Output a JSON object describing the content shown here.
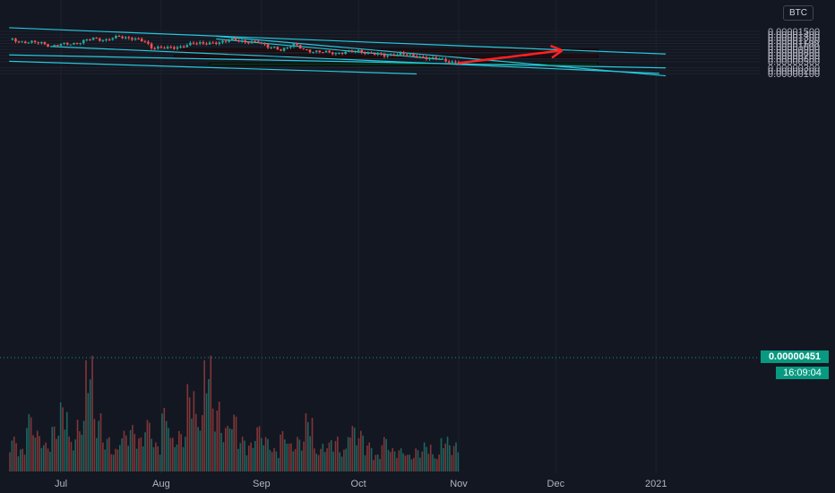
{
  "currency": "BTC",
  "last_price": "0.00000451",
  "countdown": "16:09:04",
  "colors": {
    "background": "#131722",
    "up_candle": "#26a69a",
    "down_candle": "#ef5350",
    "trendline": "#26c6da",
    "resistance_zone": "#b71c1c",
    "support_zone": "#1b8a1b",
    "arrow": "#ff2222"
  },
  "chart_data": {
    "type": "candlestick",
    "y_axis": {
      "scale": "linear",
      "range": [
        9e-07,
        1.56e-05
      ],
      "tick_labels": [
        "0.00001500",
        "0.00001400",
        "0.00001300",
        "0.00001200",
        "0.00001100",
        "0.00001000",
        "0.00000900",
        "0.00000800",
        "0.00000700",
        "0.00000600",
        "0.00000500",
        "0.00000300",
        "0.00000200",
        "0.00000100"
      ],
      "tick_values": [
        1.5e-05,
        1.4e-05,
        1.3e-05,
        1.2e-05,
        1.1e-05,
        1e-05,
        9e-06,
        8e-06,
        7e-06,
        6e-06,
        5e-06,
        3e-06,
        2e-06,
        1e-06
      ]
    },
    "x_axis": {
      "tick_labels": [
        "Jul",
        "Aug",
        "Sep",
        "Oct",
        "Nov",
        "Dec",
        "2021"
      ],
      "tick_days": [
        0,
        31,
        62,
        92,
        123,
        153,
        184
      ]
    },
    "price_path": [
      {
        "day": -16,
        "price": 1.25e-05
      },
      {
        "day": -12,
        "price": 1.15e-05
      },
      {
        "day": -6,
        "price": 1.12e-05
      },
      {
        "day": -3,
        "price": 1.01e-05
      },
      {
        "day": 0,
        "price": 1.07e-05
      },
      {
        "day": 5,
        "price": 1.11e-05
      },
      {
        "day": 10,
        "price": 1.27e-05
      },
      {
        "day": 14,
        "price": 1.21e-05
      },
      {
        "day": 18,
        "price": 1.33e-05
      },
      {
        "day": 22,
        "price": 1.27e-05
      },
      {
        "day": 26,
        "price": 1.15e-05
      },
      {
        "day": 28,
        "price": 9.8e-06
      },
      {
        "day": 33,
        "price": 9.4e-06
      },
      {
        "day": 37,
        "price": 9.9e-06
      },
      {
        "day": 41,
        "price": 1.1e-05
      },
      {
        "day": 45,
        "price": 1.12e-05
      },
      {
        "day": 49,
        "price": 1.1e-05
      },
      {
        "day": 53,
        "price": 1.27e-05
      },
      {
        "day": 57,
        "price": 1.12e-05
      },
      {
        "day": 61,
        "price": 1.18e-05
      },
      {
        "day": 64,
        "price": 9.8e-06
      },
      {
        "day": 68,
        "price": 8.9e-06
      },
      {
        "day": 72,
        "price": 1.08e-05
      },
      {
        "day": 75,
        "price": 8.9e-06
      },
      {
        "day": 80,
        "price": 8.2e-06
      },
      {
        "day": 85,
        "price": 7.8e-06
      },
      {
        "day": 92,
        "price": 8.5e-06
      },
      {
        "day": 95,
        "price": 7.8e-06
      },
      {
        "day": 100,
        "price": 7e-06
      },
      {
        "day": 105,
        "price": 7.5e-06
      },
      {
        "day": 110,
        "price": 6.8e-06
      },
      {
        "day": 114,
        "price": 5.8e-06
      },
      {
        "day": 117,
        "price": 6.1e-06
      },
      {
        "day": 121,
        "price": 4.6e-06
      },
      {
        "day": 123,
        "price": 4.51e-06
      }
    ],
    "volume_relative": [
      0.3,
      0.2,
      0.5,
      0.35,
      0.25,
      0.4,
      0.6,
      0.3,
      0.45,
      1.0,
      0.5,
      0.3,
      0.2,
      0.35,
      0.4,
      0.3,
      0.45,
      0.25,
      0.55,
      0.3,
      0.35,
      0.75,
      0.5,
      1.0,
      0.6,
      0.4,
      0.5,
      0.3,
      0.25,
      0.4,
      0.3,
      0.2,
      0.35,
      0.25,
      0.3,
      0.5,
      0.2,
      0.25,
      0.3,
      0.2,
      0.4,
      0.35,
      0.25,
      0.15,
      0.3,
      0.2,
      0.2,
      0.15,
      0.2,
      0.25,
      0.15,
      0.3,
      0.25,
      0.2,
      0.15,
      0.2
    ],
    "resistance_zones": [
      {
        "from_day": 35,
        "to_day": 166,
        "low": 8.5e-06,
        "high": 9e-06
      },
      {
        "from_day": 35,
        "to_day": 166,
        "low": 6.5e-06,
        "high": 7e-06
      }
    ],
    "support_zone": {
      "from_day": 46,
      "to_day": 166,
      "low": 4e-06,
      "high": 4.5e-06
    },
    "projection_arrow": {
      "from_day": 123,
      "from_price": 4.5e-06,
      "to_day": 155,
      "to_price": 8.7e-06
    },
    "trendlines": [
      {
        "start_day": -16,
        "start_price": 1.62e-05,
        "end_day": 187,
        "end_price": 7.5e-06
      },
      {
        "start_day": 48,
        "start_price": 1.34e-05,
        "end_day": 187,
        "end_price": 3e-07
      },
      {
        "start_day": -16,
        "start_price": 7.2e-06,
        "end_day": 187,
        "end_price": 2.9e-06
      },
      {
        "start_day": -16,
        "start_price": 5.1e-06,
        "end_day": 110,
        "end_price": 9e-07
      },
      {
        "start_day": -3,
        "start_price": 1e-05,
        "end_day": 185,
        "end_price": 1.1e-06
      },
      {
        "start_day": 48,
        "start_price": 1.25e-05,
        "end_day": 118,
        "end_price": 5.7e-06
      }
    ]
  }
}
